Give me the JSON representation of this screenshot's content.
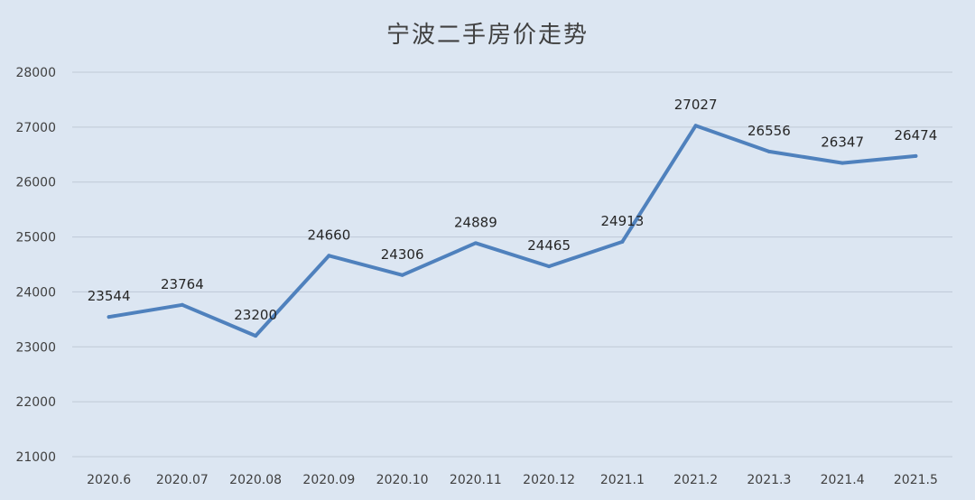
{
  "chart_data": {
    "type": "line",
    "title": "宁波二手房价走势",
    "xlabel": "",
    "ylabel": "",
    "categories": [
      "2020.6",
      "2020.07",
      "2020.08",
      "2020.09",
      "2020.10",
      "2020.11",
      "2020.12",
      "2021.1",
      "2021.2",
      "2021.3",
      "2021.4",
      "2021.5"
    ],
    "series": [
      {
        "values": [
          23544,
          23764,
          23200,
          24660,
          24306,
          24889,
          24465,
          24913,
          27027,
          26556,
          26347,
          26474
        ]
      }
    ],
    "ylim": [
      21000,
      28000
    ],
    "yticks": [
      21000,
      22000,
      23000,
      24000,
      25000,
      26000,
      27000,
      28000
    ],
    "grid": true,
    "legend": "none",
    "data_labels": true
  },
  "colors": {
    "background": "#dce6f2",
    "line": "#4f81bd",
    "grid": "#bfc9d6",
    "text": "#404040"
  }
}
